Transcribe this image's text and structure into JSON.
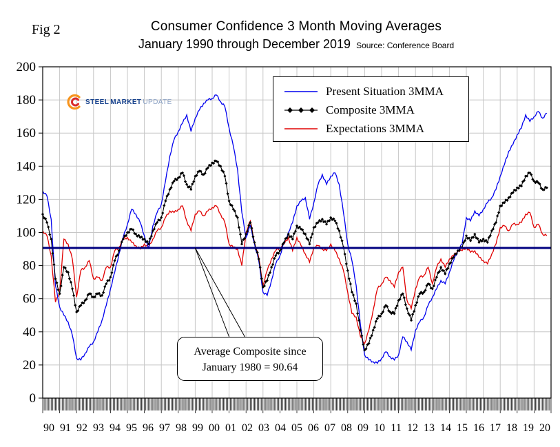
{
  "fig_label": "Fig 2",
  "title": "Consumer Confidence 3 Month Moving Averages",
  "subtitle": "January 1990 through December 2019",
  "source": "Source: Conference Board",
  "logo": {
    "steel": "STEEL",
    "market": "MARKET",
    "update": "UPDATE"
  },
  "annotation": {
    "line1": "Average Composite since",
    "line2": "January 1980 = 90.64"
  },
  "chart_data": {
    "type": "line",
    "xlim": [
      1990,
      2020
    ],
    "ylim": [
      0,
      200
    ],
    "x_step": 0.25,
    "y_tick_step": 20,
    "grid": true,
    "legend_position": "top-center",
    "x_tick_labels": [
      "90",
      "91",
      "92",
      "93",
      "94",
      "95",
      "96",
      "97",
      "98",
      "99",
      "00",
      "01",
      "02",
      "03",
      "04",
      "05",
      "06",
      "07",
      "08",
      "09",
      "10",
      "11",
      "12",
      "13",
      "14",
      "15",
      "16",
      "17",
      "18",
      "19",
      "20"
    ],
    "y_tick_labels": [
      "0",
      "20",
      "40",
      "60",
      "80",
      "100",
      "120",
      "140",
      "160",
      "180",
      "200"
    ],
    "reference_line": {
      "value": 90.64,
      "color": "#000080",
      "label": "Average Composite since January 1980 = 90.64"
    },
    "series": [
      {
        "name": "Present Situation 3MMA",
        "color": "#0000ee",
        "marker": "none",
        "values": [
          125,
          122,
          108,
          68,
          55,
          50,
          46,
          38,
          24,
          23,
          27,
          31,
          34,
          40,
          47,
          56,
          66,
          76,
          87,
          97,
          105,
          114,
          111,
          106,
          98,
          90,
          104,
          112,
          117,
          131,
          146,
          156,
          161,
          166,
          171,
          161,
          169,
          174,
          178,
          180,
          181,
          183,
          179,
          176,
          163,
          152,
          138,
          112,
          97,
          104,
          93,
          83,
          64,
          62,
          71,
          81,
          86,
          94,
          100,
          106,
          116,
          119,
          121,
          108,
          118,
          129,
          135,
          129,
          134,
          136,
          129,
          112,
          93,
          83,
          68,
          44,
          26,
          23,
          22,
          21,
          24,
          28,
          25,
          23,
          26,
          37,
          34,
          29,
          41,
          46,
          49,
          56,
          61,
          66,
          71,
          69,
          76,
          83,
          89,
          93,
          109,
          107,
          113,
          110,
          114,
          118,
          121,
          126,
          134,
          141,
          149,
          153,
          159,
          163,
          171,
          167,
          170,
          173,
          169,
          172
        ]
      },
      {
        "name": "Composite 3MMA",
        "color": "#000000",
        "marker": "diamond",
        "values": [
          111,
          106,
          96,
          72,
          63,
          79,
          76,
          66,
          52,
          56,
          59,
          63,
          61,
          63,
          62,
          69,
          73,
          83,
          89,
          96,
          100,
          102,
          99,
          97,
          96,
          93,
          101,
          106,
          109,
          119,
          126,
          131,
          133,
          136,
          129,
          126,
          134,
          137,
          135,
          139,
          142,
          143,
          140,
          134,
          119,
          114,
          109,
          93,
          99,
          106,
          94,
          84,
          67,
          71,
          79,
          86,
          89,
          94,
          99,
          96,
          104,
          102,
          99,
          93,
          103,
          106,
          108,
          105,
          109,
          107,
          101,
          91,
          77,
          64,
          57,
          41,
          29,
          33,
          41,
          48,
          51,
          56,
          52,
          51,
          59,
          63,
          54,
          47,
          56,
          63,
          64,
          69,
          66,
          73,
          79,
          75,
          81,
          85,
          89,
          91,
          98,
          95,
          99,
          94,
          96,
          94,
          101,
          106,
          116,
          118,
          121,
          124,
          127,
          128,
          134,
          136,
          131,
          130,
          126,
          127
        ]
      },
      {
        "name": "Expectations 3MMA",
        "color": "#e00000",
        "marker": "none",
        "values": [
          101,
          98,
          86,
          58,
          64,
          96,
          93,
          84,
          61,
          77,
          79,
          83,
          72,
          73,
          71,
          79,
          79,
          89,
          91,
          96,
          97,
          94,
          92,
          90,
          93,
          91,
          96,
          101,
          103,
          109,
          113,
          112,
          114,
          116,
          107,
          101,
          111,
          113,
          110,
          113,
          115,
          116,
          111,
          106,
          93,
          91,
          90,
          80,
          100,
          107,
          94,
          85,
          68,
          77,
          84,
          89,
          91,
          93,
          97,
          89,
          97,
          92,
          87,
          82,
          91,
          92,
          90,
          89,
          93,
          89,
          84,
          77,
          64,
          51,
          49,
          37,
          33,
          41,
          53,
          66,
          69,
          73,
          71,
          67,
          76,
          79,
          59,
          54,
          66,
          73,
          74,
          79,
          69,
          79,
          84,
          79,
          84,
          86,
          89,
          89,
          91,
          88,
          89,
          85,
          83,
          81,
          87,
          93,
          103,
          104,
          101,
          105,
          105,
          106,
          111,
          112,
          103,
          105,
          99,
          98
        ]
      }
    ]
  }
}
